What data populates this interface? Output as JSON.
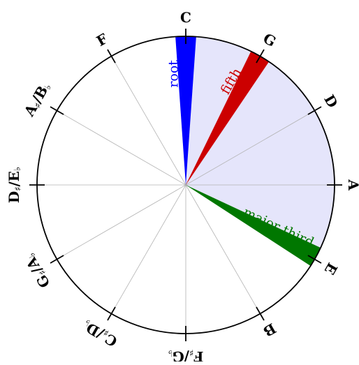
{
  "notes": [
    {
      "key": "C",
      "main": "C",
      "rot": 0
    },
    {
      "key": "G",
      "main": "G",
      "rot": 30
    },
    {
      "key": "D",
      "main": "D",
      "rot": 60
    },
    {
      "key": "A",
      "main": "A",
      "rot": 90
    },
    {
      "key": "E",
      "main": "E",
      "rot": 120
    },
    {
      "key": "B",
      "main": "B",
      "rot": 150
    },
    {
      "key": "FsGb",
      "main": "F",
      "acc1": "♯",
      "slash": "/G",
      "acc2": "♭",
      "rot": 180
    },
    {
      "key": "CsDb",
      "main": "C",
      "acc1": "♯",
      "slash": "/D",
      "acc2": "♭",
      "rot": -150
    },
    {
      "key": "GsAb",
      "main": "G",
      "acc1": "♯",
      "slash": "/A",
      "acc2": "♭",
      "rot": -120
    },
    {
      "key": "DsEb",
      "main": "D",
      "acc1": "♯",
      "slash": "/E",
      "acc2": "♭",
      "rot": -90
    },
    {
      "key": "AsBb",
      "main": "A",
      "acc1": "♯",
      "slash": "/B",
      "acc2": "♭",
      "rot": -60
    },
    {
      "key": "F",
      "main": "F",
      "rot": -30
    }
  ],
  "chord": {
    "root": {
      "label": "root",
      "color": "#0000ff"
    },
    "fifth": {
      "label": "fifth",
      "color": "#cc0000"
    },
    "third": {
      "label": "major third",
      "color": "#007700"
    },
    "span_fill": "#e5e5fb"
  },
  "colors": {
    "circle": "#000000",
    "spokes": "#b3b3b3"
  }
}
